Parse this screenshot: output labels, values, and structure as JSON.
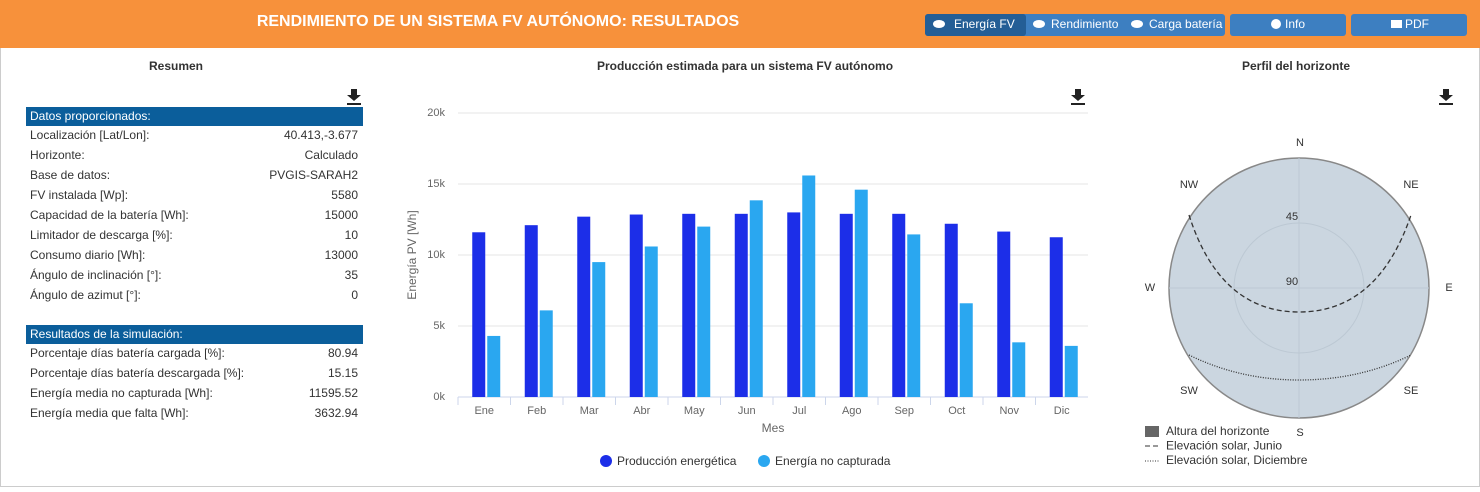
{
  "header": {
    "title": "RENDIMIENTO DE UN SISTEMA FV AUTÓNOMO: RESULTADOS",
    "tabs": [
      "Energía FV",
      "Rendimiento",
      "Carga batería"
    ],
    "info": "Info",
    "pdf": "PDF"
  },
  "summary": {
    "title": "Resumen",
    "inputs": {
      "heading": "Datos proporcionados:",
      "rows": [
        [
          "Localización [Lat/Lon]:",
          "40.413,-3.677"
        ],
        [
          "Horizonte:",
          "Calculado"
        ],
        [
          "Base de datos:",
          "PVGIS-SARAH2"
        ],
        [
          "FV instalada [Wp]:",
          "5580"
        ],
        [
          "Capacidad de la batería [Wh]:",
          "15000"
        ],
        [
          "Limitador de descarga [%]:",
          "10"
        ],
        [
          "Consumo diario [Wh]:",
          "13000"
        ],
        [
          "Ángulo de inclinación [°]:",
          "35"
        ],
        [
          "Ángulo de azimut [°]:",
          "0"
        ]
      ]
    },
    "results": {
      "heading": "Resultados de la simulación:",
      "rows": [
        [
          "Porcentaje días batería cargada [%]:",
          "80.94"
        ],
        [
          "Porcentaje días batería descargada [%]:",
          "15.15"
        ],
        [
          "Energía media no capturada [Wh]:",
          "11595.52"
        ],
        [
          "Energía media que falta [Wh]:",
          "3632.94"
        ]
      ]
    }
  },
  "chart_data": {
    "type": "bar",
    "title": "Producción estimada para un sistema FV autónomo",
    "x_label": "Mes",
    "y_label": "Energía PV [Wh]",
    "categories": [
      "Ene",
      "Feb",
      "Mar",
      "Abr",
      "May",
      "Jun",
      "Jul",
      "Ago",
      "Sep",
      "Oct",
      "Nov",
      "Dic"
    ],
    "series": [
      {
        "name": "Producción energética",
        "color": "#1c2ee8",
        "values": [
          11600,
          12100,
          12700,
          12850,
          12900,
          12900,
          13000,
          12900,
          12900,
          12200,
          11650,
          11250
        ]
      },
      {
        "name": "Energía no capturada",
        "color": "#2aa7f0",
        "values": [
          4300,
          6100,
          9500,
          10600,
          12000,
          13850,
          15600,
          14600,
          11450,
          6600,
          3850,
          3600
        ]
      }
    ],
    "ylim": [
      0,
      20000
    ],
    "yticks": [
      {
        "value": 0,
        "label": "0k"
      },
      {
        "value": 5000,
        "label": "5k"
      },
      {
        "value": 10000,
        "label": "10k"
      },
      {
        "value": 15000,
        "label": "15k"
      },
      {
        "value": 20000,
        "label": "20k"
      }
    ],
    "grid": true
  },
  "horizon": {
    "title": "Perfil del horizonte",
    "compass": [
      "N",
      "NE",
      "E",
      "SE",
      "S",
      "SW",
      "W",
      "NW"
    ],
    "rings": [
      "45",
      "90"
    ],
    "legend": [
      "Altura del horizonte",
      "Elevación solar, Junio",
      "Elevación solar, Diciembre"
    ]
  }
}
